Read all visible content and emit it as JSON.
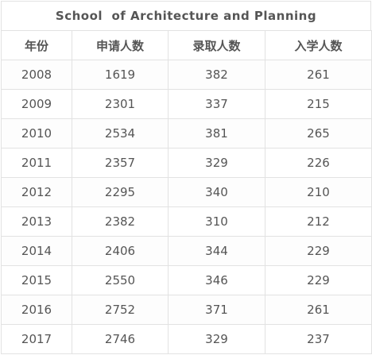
{
  "chart_data": {
    "type": "table",
    "title": "School  of Architecture and Planning",
    "columns": [
      "年份",
      "申请人数",
      "录取人数",
      "入学人数"
    ],
    "rows": [
      [
        "2008",
        "1619",
        "382",
        "261"
      ],
      [
        "2009",
        "2301",
        "337",
        "215"
      ],
      [
        "2010",
        "2534",
        "381",
        "265"
      ],
      [
        "2011",
        "2357",
        "329",
        "226"
      ],
      [
        "2012",
        "2295",
        "340",
        "210"
      ],
      [
        "2013",
        "2382",
        "310",
        "212"
      ],
      [
        "2014",
        "2406",
        "344",
        "229"
      ],
      [
        "2015",
        "2550",
        "346",
        "229"
      ],
      [
        "2016",
        "2752",
        "371",
        "261"
      ],
      [
        "2017",
        "2746",
        "329",
        "237"
      ]
    ]
  }
}
